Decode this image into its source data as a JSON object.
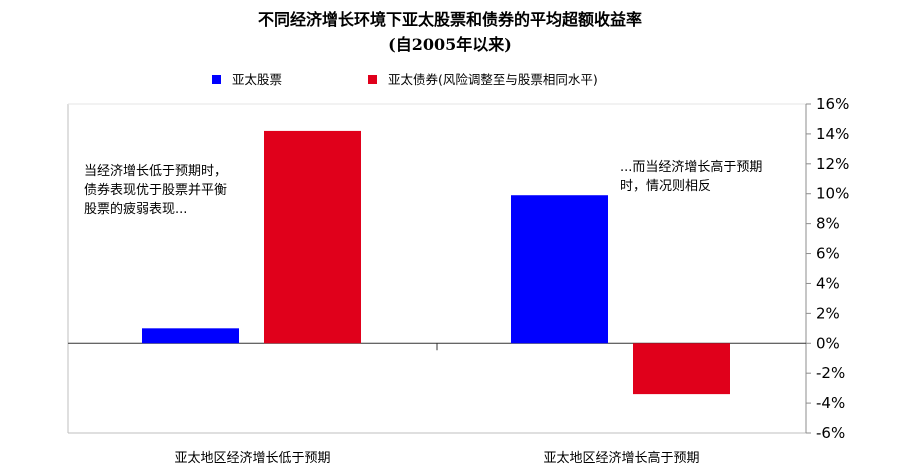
{
  "chart_data": {
    "type": "bar",
    "title": "不同经济增长环境下亚太股票和债券的平均超额收益率",
    "subtitle": "(自2005年以来)",
    "categories": [
      "亚太地区经济增长低于预期",
      "亚太地区经济增长高于预期"
    ],
    "series": [
      {
        "name": "亚太股票",
        "color": "#0000ff",
        "values": [
          1.0,
          9.9
        ]
      },
      {
        "name": "亚太债券(风险调整至与股票相同水平)",
        "color": "#e0001b",
        "values": [
          14.2,
          -3.4
        ]
      }
    ],
    "ylim": [
      -6,
      16
    ],
    "yticks": [
      16,
      14,
      12,
      10,
      8,
      6,
      4,
      2,
      0,
      -2,
      -4,
      -6
    ],
    "ytick_labels": [
      "16%",
      "14%",
      "12%",
      "10%",
      "8%",
      "6%",
      "4%",
      "2%",
      "0%",
      "-2%",
      "-4%",
      "-6%"
    ],
    "y_axis_position": "right",
    "legend_position": "top",
    "grid": false,
    "annotations": [
      {
        "lines": [
          "当经济增长低于预期时，",
          "债券表现优于股票并平衡",
          "股票的疲弱表现..."
        ]
      },
      {
        "lines": [
          "...而当经济增长高于预期",
          "时，情况则相反"
        ]
      }
    ]
  }
}
